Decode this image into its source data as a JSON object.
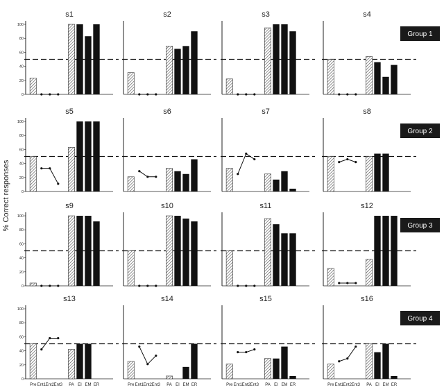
{
  "chart_data": {
    "type": "bar",
    "ylabel": "% Correct responses",
    "categories": [
      "Pre",
      "Ent1",
      "Ent2",
      "Ent3",
      "PA",
      "EI",
      "EM",
      "ER"
    ],
    "yticks": [
      0,
      20,
      40,
      60,
      80,
      100
    ],
    "ylim": [
      0,
      105
    ],
    "criterion": 50,
    "colors": {
      "bar": "#111111",
      "hatch": "#555555",
      "group_badge": "#1a1a1a"
    },
    "groups": [
      {
        "label": "Group 1",
        "subjects": [
          "s1",
          "s2",
          "s3",
          "s4"
        ]
      },
      {
        "label": "Group 2",
        "subjects": [
          "s5",
          "s6",
          "s7",
          "s8"
        ]
      },
      {
        "label": "Group 3",
        "subjects": [
          "s9",
          "s10",
          "s11",
          "s12"
        ]
      },
      {
        "label": "Group 4",
        "subjects": [
          "s13",
          "s14",
          "s15",
          "s16"
        ]
      }
    ],
    "panels": [
      {
        "title": "s1",
        "pre": 23,
        "ent": [
          0,
          0,
          0
        ],
        "pa": 100,
        "ei": 100,
        "em": 83,
        "er": 100
      },
      {
        "title": "s2",
        "pre": 31,
        "ent": [
          0,
          0,
          0
        ],
        "pa": 69,
        "ei": 65,
        "em": 69,
        "er": 90
      },
      {
        "title": "s3",
        "pre": 22,
        "ent": [
          0,
          0,
          0
        ],
        "pa": 95,
        "ei": 100,
        "em": 100,
        "er": 90
      },
      {
        "title": "s4",
        "pre": 50,
        "ent": [
          0,
          0,
          0
        ],
        "pa": 54,
        "ei": 46,
        "em": 25,
        "er": 42
      },
      {
        "title": "s5",
        "pre": 50,
        "ent": [
          33,
          33,
          11
        ],
        "pa": 63,
        "ei": 100,
        "em": 100,
        "er": 100
      },
      {
        "title": "s6",
        "pre": 21,
        "ent": [
          29,
          21,
          21
        ],
        "pa": 33,
        "ei": 29,
        "em": 25,
        "er": 46
      },
      {
        "title": "s7",
        "pre": 33,
        "ent": [
          25,
          54,
          46
        ],
        "pa": 25,
        "ei": 17,
        "em": 29,
        "er": 4
      },
      {
        "title": "s8",
        "pre": 50,
        "ent": [
          42,
          46,
          42
        ],
        "pa": 50,
        "ei": 54,
        "em": 54,
        "er": null
      },
      {
        "title": "s9",
        "pre": 4,
        "ent": [
          0,
          0,
          0
        ],
        "pa": 100,
        "ei": 100,
        "em": 100,
        "er": 92
      },
      {
        "title": "s10",
        "pre": 50,
        "ent": [
          0,
          0,
          0
        ],
        "pa": 100,
        "ei": 100,
        "em": 96,
        "er": 92
      },
      {
        "title": "s11",
        "pre": 50,
        "ent": [
          0,
          0,
          0
        ],
        "pa": 96,
        "ei": 88,
        "em": 75,
        "er": 75
      },
      {
        "title": "s12",
        "pre": 25,
        "ent": [
          4,
          4,
          4
        ],
        "pa": 38,
        "ei": 100,
        "em": 100,
        "er": 100
      },
      {
        "title": "s13",
        "pre": 50,
        "ent": [
          42,
          58,
          58
        ],
        "pa": 42,
        "ei": 50,
        "em": 50,
        "er": null
      },
      {
        "title": "s14",
        "pre": 25,
        "ent": [
          46,
          21,
          33
        ],
        "pa": 4,
        "ei": null,
        "em": 17,
        "er": 50
      },
      {
        "title": "s15",
        "pre": 21,
        "ent": [
          38,
          38,
          42
        ],
        "pa": 29,
        "ei": 29,
        "em": 46,
        "er": 4
      },
      {
        "title": "s16",
        "pre": 21,
        "ent": [
          25,
          29,
          46
        ],
        "pa": 50,
        "ei": 38,
        "em": 50,
        "er": 4
      }
    ]
  }
}
